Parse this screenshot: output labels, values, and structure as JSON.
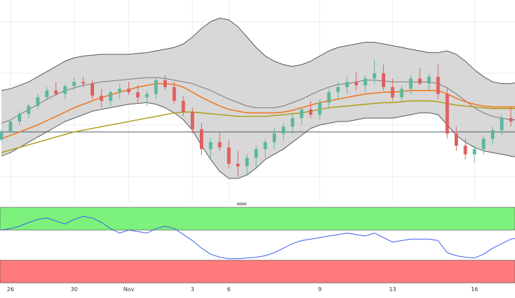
{
  "chart_data": [
    {
      "type": "candlestick",
      "title": "",
      "xlabel": "",
      "ylabel": "",
      "x_tick_labels": [
        {
          "label": "26",
          "index": 1
        },
        {
          "label": "30",
          "index": 8
        },
        {
          "label": "Nov",
          "index": 14
        },
        {
          "label": "3",
          "index": 21
        },
        {
          "label": "6",
          "index": 25
        },
        {
          "label": "9",
          "index": 35
        },
        {
          "label": "13",
          "index": 43
        },
        {
          "label": "16",
          "index": 52
        }
      ],
      "bar_count": 58,
      "grid": true,
      "y_values_note": "no price axis printed; values are relative plot units",
      "candles": [
        [
          103,
          115,
          101,
          112
        ],
        [
          112,
          126,
          110,
          124
        ],
        [
          124,
          136,
          120,
          133
        ],
        [
          133,
          145,
          128,
          142
        ],
        [
          142,
          156,
          138,
          152
        ],
        [
          152,
          164,
          148,
          160
        ],
        [
          160,
          170,
          154,
          156
        ],
        [
          156,
          167,
          150,
          165
        ],
        [
          165,
          175,
          160,
          170
        ],
        [
          170,
          176,
          164,
          168
        ],
        [
          168,
          172,
          150,
          154
        ],
        [
          154,
          162,
          140,
          148
        ],
        [
          148,
          160,
          142,
          158
        ],
        [
          158,
          168,
          150,
          162
        ],
        [
          162,
          170,
          155,
          158
        ],
        [
          158,
          166,
          146,
          152
        ],
        [
          152,
          160,
          142,
          156
        ],
        [
          156,
          175,
          150,
          172
        ],
        [
          172,
          178,
          160,
          164
        ],
        [
          164,
          170,
          145,
          148
        ],
        [
          148,
          154,
          130,
          135
        ],
        [
          135,
          140,
          110,
          115
        ],
        [
          115,
          122,
          85,
          92
        ],
        [
          92,
          105,
          80,
          100
        ],
        [
          100,
          112,
          90,
          94
        ],
        [
          94,
          102,
          70,
          75
        ],
        [
          75,
          90,
          60,
          72
        ],
        [
          72,
          86,
          62,
          82
        ],
        [
          82,
          96,
          70,
          92
        ],
        [
          92,
          104,
          82,
          100
        ],
        [
          100,
          116,
          92,
          110
        ],
        [
          110,
          122,
          102,
          118
        ],
        [
          118,
          134,
          110,
          128
        ],
        [
          128,
          140,
          120,
          138
        ],
        [
          138,
          148,
          128,
          132
        ],
        [
          132,
          150,
          126,
          146
        ],
        [
          146,
          162,
          140,
          158
        ],
        [
          158,
          170,
          150,
          164
        ],
        [
          164,
          176,
          156,
          170
        ],
        [
          170,
          182,
          160,
          166
        ],
        [
          166,
          178,
          158,
          174
        ],
        [
          174,
          196,
          168,
          180
        ],
        [
          180,
          190,
          160,
          164
        ],
        [
          164,
          174,
          148,
          152
        ],
        [
          152,
          166,
          146,
          162
        ],
        [
          162,
          178,
          156,
          174
        ],
        [
          174,
          186,
          166,
          168
        ],
        [
          168,
          180,
          160,
          176
        ],
        [
          176,
          190,
          150,
          156
        ],
        [
          156,
          164,
          104,
          110
        ],
        [
          110,
          118,
          90,
          96
        ],
        [
          96,
          104,
          80,
          86
        ],
        [
          86,
          96,
          76,
          92
        ],
        [
          92,
          108,
          86,
          104
        ],
        [
          104,
          118,
          98,
          114
        ],
        [
          114,
          132,
          108,
          128
        ],
        [
          128,
          140,
          118,
          124
        ],
        [
          124,
          136,
          116,
          130
        ]
      ],
      "bollinger_upper": [
        160,
        162,
        166,
        170,
        176,
        182,
        188,
        194,
        198,
        200,
        201,
        202,
        202,
        202,
        202,
        203,
        204,
        206,
        208,
        210,
        214,
        222,
        232,
        240,
        244,
        242,
        234,
        222,
        210,
        200,
        194,
        190,
        188,
        190,
        194,
        200,
        206,
        210,
        212,
        214,
        216,
        216,
        214,
        212,
        210,
        208,
        206,
        204,
        204,
        206,
        202,
        194,
        184,
        176,
        170,
        168,
        168,
        170
      ],
      "bollinger_middle": [
        122,
        126,
        132,
        138,
        144,
        150,
        155,
        160,
        163,
        166,
        168,
        170,
        171,
        172,
        173,
        174,
        175,
        175,
        174,
        172,
        170,
        168,
        164,
        160,
        155,
        150,
        146,
        142,
        140,
        140,
        140,
        142,
        146,
        150,
        155,
        160,
        164,
        167,
        168,
        170,
        172,
        172,
        171,
        170,
        170,
        170,
        170,
        170,
        168,
        163,
        156,
        148,
        140,
        134,
        130,
        128,
        126,
        126
      ],
      "bollinger_lower": [
        84,
        88,
        94,
        100,
        106,
        112,
        118,
        124,
        128,
        132,
        136,
        138,
        140,
        142,
        144,
        145,
        146,
        144,
        140,
        134,
        126,
        114,
        96,
        80,
        66,
        58,
        58,
        62,
        70,
        80,
        86,
        92,
        100,
        108,
        116,
        120,
        122,
        124,
        124,
        126,
        128,
        128,
        128,
        128,
        130,
        132,
        134,
        134,
        132,
        120,
        108,
        100,
        94,
        90,
        88,
        86,
        84,
        82
      ],
      "ma_fast": {
        "color": "#f07820",
        "values": [
          104,
          108,
          112,
          116,
          120,
          125,
          130,
          135,
          140,
          144,
          148,
          152,
          155,
          158,
          161,
          164,
          166,
          168,
          168,
          167,
          164,
          158,
          152,
          147,
          142,
          138,
          136,
          134,
          134,
          134,
          134,
          135,
          137,
          140,
          143,
          146,
          148,
          150,
          152,
          154,
          156,
          157,
          158,
          158,
          159,
          160,
          160,
          160,
          160,
          156,
          151,
          147,
          144,
          142,
          141,
          141,
          141,
          141
        ]
      },
      "ma_slow": {
        "color": "#b0a020",
        "values": [
          88,
          91,
          94,
          97,
          100,
          103,
          106,
          109,
          112,
          114,
          116,
          118,
          120,
          122,
          124,
          126,
          128,
          130,
          132,
          134,
          135,
          135,
          134,
          133,
          132,
          131,
          130,
          130,
          130,
          130,
          131,
          132,
          133,
          134,
          136,
          138,
          140,
          141,
          142,
          143,
          144,
          145,
          146,
          146,
          147,
          148,
          148,
          148,
          147,
          145,
          143,
          142,
          141,
          140,
          139,
          139,
          139,
          139
        ]
      },
      "reference_line": 112
    },
    {
      "type": "line",
      "title": "",
      "xlabel": "",
      "ylabel": "",
      "ylim": [
        0,
        100
      ],
      "zones": [
        {
          "from": 70,
          "to": 100,
          "color": "#7cf27c"
        },
        {
          "from": 0,
          "to": 30,
          "color": "#ff7b7b"
        }
      ],
      "series": [
        {
          "color": "#3a5cf0",
          "values": [
            70,
            72,
            75,
            80,
            84,
            86,
            82,
            78,
            84,
            88,
            86,
            80,
            72,
            66,
            70,
            68,
            66,
            72,
            75,
            72,
            64,
            56,
            46,
            38,
            34,
            32,
            32,
            33,
            34,
            36,
            40,
            46,
            52,
            56,
            58,
            60,
            62,
            64,
            66,
            64,
            62,
            66,
            60,
            54,
            56,
            58,
            58,
            58,
            56,
            40,
            36,
            34,
            33,
            38,
            46,
            52,
            58,
            60
          ]
        }
      ]
    }
  ],
  "colors": {
    "up": "#5cb89a",
    "down": "#e06060",
    "band_fill": "#d4d4d4",
    "band_line": "#555555",
    "mid_line": "#777777",
    "ref_line": "#4a5a6a",
    "rsi_line": "#3a5cf0",
    "grid": "#ececec"
  }
}
